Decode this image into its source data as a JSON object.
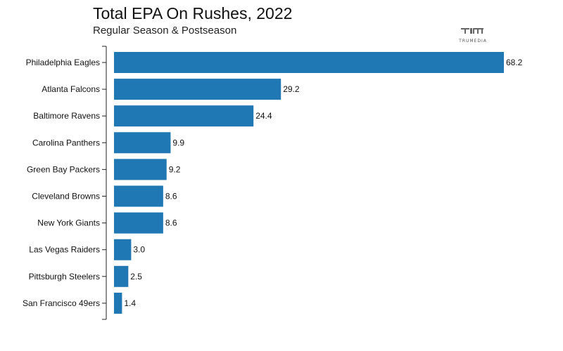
{
  "logo": {
    "text": "TRUMEDIA",
    "color": "#555555"
  },
  "chart_data": {
    "type": "bar",
    "orientation": "horizontal",
    "title": "Total EPA On Rushes, 2022",
    "subtitle": "Regular Season & Postseason",
    "categories": [
      "Philadelphia Eagles",
      "Atlanta Falcons",
      "Baltimore Ravens",
      "Carolina Panthers",
      "Green Bay Packers",
      "Cleveland Browns",
      "New York Giants",
      "Las Vegas Raiders",
      "Pittsburgh Steelers",
      "San Francisco 49ers"
    ],
    "values": [
      68.2,
      29.2,
      24.4,
      9.9,
      9.2,
      8.6,
      8.6,
      3.0,
      2.5,
      1.4
    ],
    "value_labels": [
      "68.2",
      "29.2",
      "24.4",
      "9.9",
      "9.2",
      "8.6",
      "8.6",
      "3.0",
      "2.5",
      "1.4"
    ],
    "xlim": [
      0,
      68.2
    ],
    "bar_color": "#1f77b4",
    "grid": false,
    "legend": "none"
  }
}
